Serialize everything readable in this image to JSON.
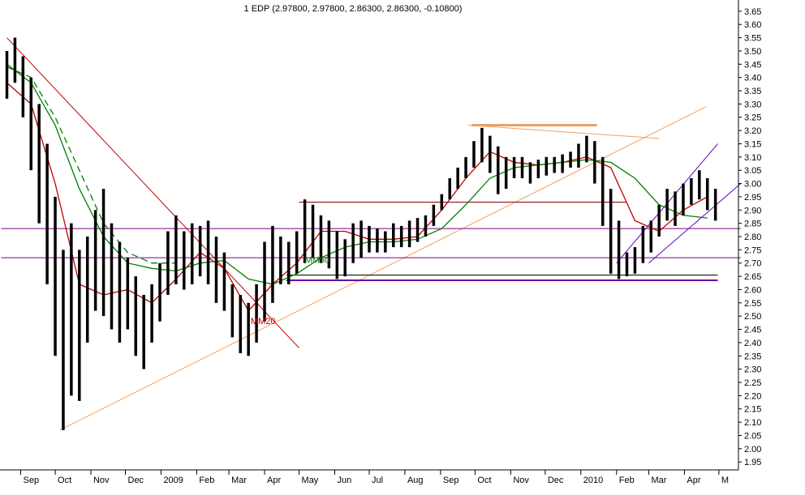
{
  "chart_data": {
    "type": "line",
    "title": "1 EDP (2.97800, 2.97800, 2.86300, 2.86300, -0.10800)",
    "xlabel": "",
    "ylabel": "",
    "grid": false,
    "ylim": [
      1.92,
      3.68
    ],
    "y_axis_side": "right",
    "y_ticks": [
      1.95,
      2.0,
      2.05,
      2.1,
      2.15,
      2.2,
      2.25,
      2.3,
      2.35,
      2.4,
      2.45,
      2.5,
      2.55,
      2.6,
      2.65,
      2.7,
      2.75,
      2.8,
      2.85,
      2.9,
      2.95,
      3.0,
      3.05,
      3.1,
      3.15,
      3.2,
      3.25,
      3.3,
      3.35,
      3.4,
      3.45,
      3.5,
      3.55,
      3.6,
      3.65
    ],
    "x_tick_labels": [
      "Sep",
      "Oct",
      "Nov",
      "Dec",
      "2009",
      "Feb",
      "Mar",
      "Apr",
      "May",
      "Jun",
      "Jul",
      "Aug",
      "Sep",
      "Oct",
      "Nov",
      "Dec",
      "2010",
      "Feb",
      "Mar",
      "Apr",
      "M"
    ],
    "x_ticks": [
      "2008-09-01",
      "2008-10-01",
      "2008-11-01",
      "2008-12-01",
      "2009-01-01",
      "2009-02-01",
      "2009-03-01",
      "2009-04-01",
      "2009-05-01",
      "2009-06-01",
      "2009-07-01",
      "2009-08-01",
      "2009-09-01",
      "2009-10-01",
      "2009-11-01",
      "2009-12-01",
      "2010-01-01",
      "2010-02-01",
      "2010-03-01",
      "2010-04-01",
      "2010-05-01"
    ],
    "series": [
      {
        "kind": "price-bars",
        "color": "#000000",
        "x": [
          "2008-08-20",
          "2008-08-27",
          "2008-09-03",
          "2008-09-10",
          "2008-09-17",
          "2008-09-24",
          "2008-10-01",
          "2008-10-08",
          "2008-10-15",
          "2008-10-22",
          "2008-10-29",
          "2008-11-05",
          "2008-11-12",
          "2008-11-19",
          "2008-11-26",
          "2008-12-03",
          "2008-12-10",
          "2008-12-17",
          "2008-12-24",
          "2008-12-31",
          "2009-01-07",
          "2009-01-14",
          "2009-01-21",
          "2009-01-28",
          "2009-02-04",
          "2009-02-11",
          "2009-02-18",
          "2009-02-25",
          "2009-03-04",
          "2009-03-11",
          "2009-03-18",
          "2009-03-25",
          "2009-04-01",
          "2009-04-08",
          "2009-04-15",
          "2009-04-22",
          "2009-04-29",
          "2009-05-06",
          "2009-05-13",
          "2009-05-20",
          "2009-05-27",
          "2009-06-03",
          "2009-06-10",
          "2009-06-17",
          "2009-06-24",
          "2009-07-01",
          "2009-07-08",
          "2009-07-15",
          "2009-07-22",
          "2009-07-29",
          "2009-08-05",
          "2009-08-12",
          "2009-08-19",
          "2009-08-26",
          "2009-09-02",
          "2009-09-09",
          "2009-09-16",
          "2009-09-23",
          "2009-09-30",
          "2009-10-07",
          "2009-10-14",
          "2009-10-21",
          "2009-10-28",
          "2009-11-04",
          "2009-11-11",
          "2009-11-18",
          "2009-11-25",
          "2009-12-02",
          "2009-12-09",
          "2009-12-16",
          "2009-12-23",
          "2009-12-30",
          "2010-01-06",
          "2010-01-13",
          "2010-01-20",
          "2010-01-27",
          "2010-02-03",
          "2010-02-10",
          "2010-02-17",
          "2010-02-24",
          "2010-03-03",
          "2010-03-10",
          "2010-03-17",
          "2010-03-24",
          "2010-03-31",
          "2010-04-07",
          "2010-04-14",
          "2010-04-21",
          "2010-04-28"
        ],
        "high": [
          3.5,
          3.55,
          3.48,
          3.4,
          3.3,
          3.15,
          2.95,
          2.75,
          2.85,
          2.75,
          2.8,
          2.9,
          2.98,
          2.85,
          2.78,
          2.72,
          2.65,
          2.58,
          2.62,
          2.7,
          2.82,
          2.88,
          2.82,
          2.85,
          2.84,
          2.86,
          2.8,
          2.74,
          2.62,
          2.58,
          2.55,
          2.62,
          2.78,
          2.84,
          2.8,
          2.78,
          2.82,
          2.94,
          2.92,
          2.88,
          2.86,
          2.82,
          2.79,
          2.85,
          2.86,
          2.84,
          2.83,
          2.82,
          2.85,
          2.84,
          2.86,
          2.87,
          2.88,
          2.92,
          2.96,
          3.02,
          3.06,
          3.1,
          3.16,
          3.21,
          3.18,
          3.14,
          3.1,
          3.1,
          3.1,
          3.08,
          3.09,
          3.1,
          3.1,
          3.11,
          3.12,
          3.15,
          3.18,
          3.16,
          3.1,
          2.98,
          2.86,
          2.74,
          2.76,
          2.84,
          2.86,
          2.92,
          2.98,
          2.97,
          3.0,
          3.02,
          3.05,
          3.02,
          2.98
        ],
        "low": [
          3.32,
          3.38,
          3.25,
          3.05,
          2.85,
          2.62,
          2.35,
          2.07,
          2.2,
          2.18,
          2.4,
          2.52,
          2.5,
          2.45,
          2.4,
          2.45,
          2.35,
          2.3,
          2.4,
          2.48,
          2.58,
          2.62,
          2.6,
          2.62,
          2.65,
          2.62,
          2.55,
          2.52,
          2.42,
          2.36,
          2.35,
          2.4,
          2.48,
          2.55,
          2.62,
          2.62,
          2.66,
          2.7,
          2.72,
          2.7,
          2.68,
          2.64,
          2.65,
          2.7,
          2.72,
          2.74,
          2.74,
          2.74,
          2.76,
          2.76,
          2.76,
          2.78,
          2.8,
          2.84,
          2.9,
          2.94,
          2.98,
          3.02,
          3.06,
          3.08,
          3.04,
          2.96,
          2.98,
          3.02,
          3.02,
          3.0,
          3.02,
          3.03,
          3.04,
          3.04,
          3.06,
          3.06,
          3.08,
          3.0,
          2.84,
          2.66,
          2.64,
          2.65,
          2.66,
          2.7,
          2.74,
          2.8,
          2.86,
          2.84,
          2.88,
          2.92,
          2.94,
          2.9,
          2.86
        ]
      },
      {
        "name": "MM20",
        "color": "#c00000",
        "x": [
          "2008-08-20",
          "2008-09-10",
          "2008-10-01",
          "2008-10-22",
          "2008-11-12",
          "2008-12-03",
          "2008-12-24",
          "2009-01-14",
          "2009-02-04",
          "2009-02-25",
          "2009-03-18",
          "2009-04-08",
          "2009-04-29",
          "2009-05-20",
          "2009-06-10",
          "2009-07-01",
          "2009-07-22",
          "2009-08-12",
          "2009-09-02",
          "2009-09-23",
          "2009-10-14",
          "2009-11-04",
          "2009-11-25",
          "2009-12-16",
          "2010-01-06",
          "2010-01-27",
          "2010-02-17",
          "2010-03-10",
          "2010-03-31",
          "2010-04-21"
        ],
        "values": [
          3.38,
          3.3,
          3.0,
          2.62,
          2.58,
          2.6,
          2.55,
          2.64,
          2.74,
          2.68,
          2.52,
          2.62,
          2.7,
          2.82,
          2.82,
          2.79,
          2.79,
          2.8,
          2.9,
          3.02,
          3.12,
          3.08,
          3.07,
          3.08,
          3.1,
          3.06,
          2.86,
          2.82,
          2.9,
          2.95
        ]
      },
      {
        "name": "MM50",
        "color": "#008000",
        "x": [
          "2008-08-20",
          "2008-09-10",
          "2008-10-01",
          "2008-10-22",
          "2008-11-12",
          "2008-12-03",
          "2008-12-24",
          "2009-01-14",
          "2009-02-04",
          "2009-02-25",
          "2009-03-18",
          "2009-04-08",
          "2009-04-29",
          "2009-05-20",
          "2009-06-10",
          "2009-07-01",
          "2009-07-22",
          "2009-08-12",
          "2009-09-02",
          "2009-09-23",
          "2009-10-14",
          "2009-11-04",
          "2009-11-25",
          "2009-12-16",
          "2010-01-06",
          "2010-01-27",
          "2010-02-17",
          "2010-03-10",
          "2010-03-31",
          "2010-04-21"
        ],
        "values": [
          3.45,
          3.38,
          3.22,
          2.98,
          2.8,
          2.7,
          2.68,
          2.67,
          2.7,
          2.71,
          2.64,
          2.62,
          2.66,
          2.72,
          2.76,
          2.78,
          2.78,
          2.79,
          2.83,
          2.92,
          3.02,
          3.06,
          3.07,
          3.08,
          3.09,
          3.08,
          3.02,
          2.92,
          2.88,
          2.87
        ]
      },
      {
        "kind": "dashed-average",
        "color": "#008000",
        "x": [
          "2008-08-20",
          "2008-09-10",
          "2008-10-01",
          "2008-10-22",
          "2008-11-12",
          "2008-12-03",
          "2008-12-24",
          "2009-01-14"
        ],
        "values": [
          3.44,
          3.4,
          3.25,
          3.05,
          2.85,
          2.74,
          2.7,
          2.7
        ]
      }
    ],
    "trendlines": [
      {
        "color": "#c00000",
        "from": [
          "2008-08-20",
          3.55
        ],
        "to": [
          "2009-05-01",
          2.38
        ]
      },
      {
        "color": "#f0a060",
        "from": [
          "2008-10-05",
          2.07
        ],
        "to": [
          "2010-04-20",
          3.29
        ]
      },
      {
        "color": "#f0a060",
        "from": [
          "2009-09-25",
          3.22
        ],
        "to": [
          "2010-03-10",
          3.17
        ]
      },
      {
        "color": "#f0a060",
        "width": 3,
        "from": [
          "2009-09-28",
          3.22
        ],
        "to": [
          "2010-01-15",
          3.22
        ]
      },
      {
        "color": "#800000",
        "from": [
          "2009-05-01",
          2.93
        ],
        "to": [
          "2010-02-10",
          2.93
        ]
      },
      {
        "color": "#800080",
        "from": [
          "2008-08-15",
          2.83
        ],
        "to": [
          "2010-05-20",
          2.83
        ]
      },
      {
        "color": "#800080",
        "from": [
          "2008-08-15",
          2.72
        ],
        "to": [
          "2010-05-20",
          2.72
        ]
      },
      {
        "color": "#6a00a0",
        "width": 2,
        "from": [
          "2009-04-20",
          2.635
        ],
        "to": [
          "2010-04-30",
          2.635
        ]
      },
      {
        "color": "#000000",
        "from": [
          "2009-04-20",
          2.655
        ],
        "to": [
          "2010-04-30",
          2.655
        ]
      },
      {
        "color": "#6a00c0",
        "from": [
          "2010-02-01",
          2.7
        ],
        "to": [
          "2010-04-30",
          3.15
        ]
      },
      {
        "color": "#6a00c0",
        "from": [
          "2010-03-01",
          2.7
        ],
        "to": [
          "2010-05-20",
          3.0
        ]
      }
    ],
    "annotations": [
      {
        "text": "MM50",
        "color": "#008000",
        "at": [
          "2009-05-06",
          2.7
        ]
      },
      {
        "text": "MM20",
        "color": "#c00000",
        "at": [
          "2009-03-20",
          2.47
        ]
      }
    ]
  }
}
